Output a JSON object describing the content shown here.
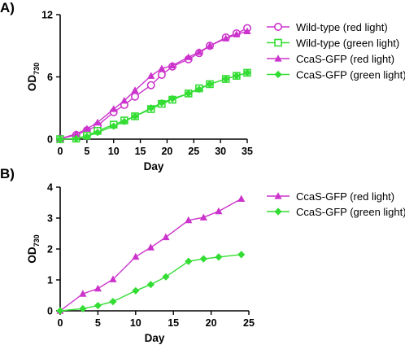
{
  "chart_data": [
    {
      "panel_label": "A)",
      "type": "line",
      "xlabel": "Day",
      "ylabel_main": "OD",
      "ylabel_sub": "730",
      "xlim": [
        0,
        35
      ],
      "ylim": [
        0,
        12
      ],
      "xticks": [
        0,
        5,
        10,
        15,
        20,
        25,
        30,
        35
      ],
      "yticks": [
        0,
        6,
        12
      ],
      "grid": false,
      "legend_position": "right",
      "series": [
        {
          "name": "Wild-type (red light)",
          "color": "#cc33cc",
          "marker": "circle-open",
          "x": [
            0,
            3,
            5,
            7,
            10,
            12,
            14,
            17,
            19,
            21,
            24,
            26,
            28,
            31,
            33,
            35
          ],
          "y": [
            0.05,
            0.4,
            0.85,
            1.3,
            2.6,
            3.3,
            4.1,
            5.2,
            6.2,
            7.0,
            7.7,
            8.3,
            9.0,
            9.8,
            10.2,
            10.7
          ]
        },
        {
          "name": "Wild-type (green light)",
          "color": "#33dd33",
          "marker": "square-open",
          "x": [
            0,
            3,
            5,
            7,
            10,
            12,
            14,
            17,
            19,
            21,
            24,
            26,
            28,
            31,
            33,
            35
          ],
          "y": [
            0.0,
            0.05,
            0.35,
            0.8,
            1.4,
            1.8,
            2.2,
            2.9,
            3.4,
            3.8,
            4.4,
            4.9,
            5.3,
            5.8,
            6.1,
            6.4
          ]
        },
        {
          "name": "CcaS-GFP (red light)",
          "color": "#cc33cc",
          "marker": "triangle",
          "x": [
            0,
            3,
            5,
            7,
            10,
            12,
            14,
            17,
            19,
            21,
            24,
            26,
            28,
            31,
            33,
            35
          ],
          "y": [
            0.05,
            0.5,
            1.0,
            1.6,
            2.9,
            3.7,
            4.7,
            6.1,
            6.8,
            7.1,
            7.9,
            8.4,
            9.0,
            9.7,
            10.1,
            10.4
          ]
        },
        {
          "name": "CcaS-GFP (green light)",
          "color": "#33dd33",
          "marker": "diamond",
          "x": [
            0,
            3,
            5,
            7,
            10,
            12,
            14,
            17,
            19,
            21,
            24,
            26,
            28,
            31,
            33,
            35
          ],
          "y": [
            0.0,
            0.05,
            0.25,
            0.65,
            1.25,
            1.7,
            2.2,
            3.0,
            3.5,
            3.9,
            4.4,
            4.8,
            5.3,
            5.8,
            6.1,
            6.4
          ]
        }
      ]
    },
    {
      "panel_label": "B)",
      "type": "line",
      "xlabel": "Day",
      "ylabel_main": "OD",
      "ylabel_sub": "730",
      "xlim": [
        0,
        25
      ],
      "ylim": [
        0,
        4
      ],
      "xticks": [
        0,
        5,
        10,
        15,
        20,
        25
      ],
      "yticks": [
        0,
        1,
        2,
        3,
        4
      ],
      "grid": false,
      "legend_position": "right",
      "series": [
        {
          "name": "CcaS-GFP (red light)",
          "color": "#cc33cc",
          "marker": "triangle",
          "x": [
            0,
            3,
            5,
            7,
            10,
            12,
            14,
            17,
            19,
            21,
            24
          ],
          "y": [
            0.0,
            0.55,
            0.72,
            1.02,
            1.75,
            2.05,
            2.38,
            2.93,
            3.02,
            3.22,
            3.62
          ]
        },
        {
          "name": "CcaS-GFP (green light)",
          "color": "#33dd33",
          "marker": "diamond",
          "x": [
            0,
            3,
            5,
            7,
            10,
            12,
            14,
            17,
            19,
            21,
            24
          ],
          "y": [
            0.0,
            0.07,
            0.17,
            0.3,
            0.65,
            0.85,
            1.1,
            1.6,
            1.68,
            1.74,
            1.82
          ]
        }
      ]
    }
  ]
}
